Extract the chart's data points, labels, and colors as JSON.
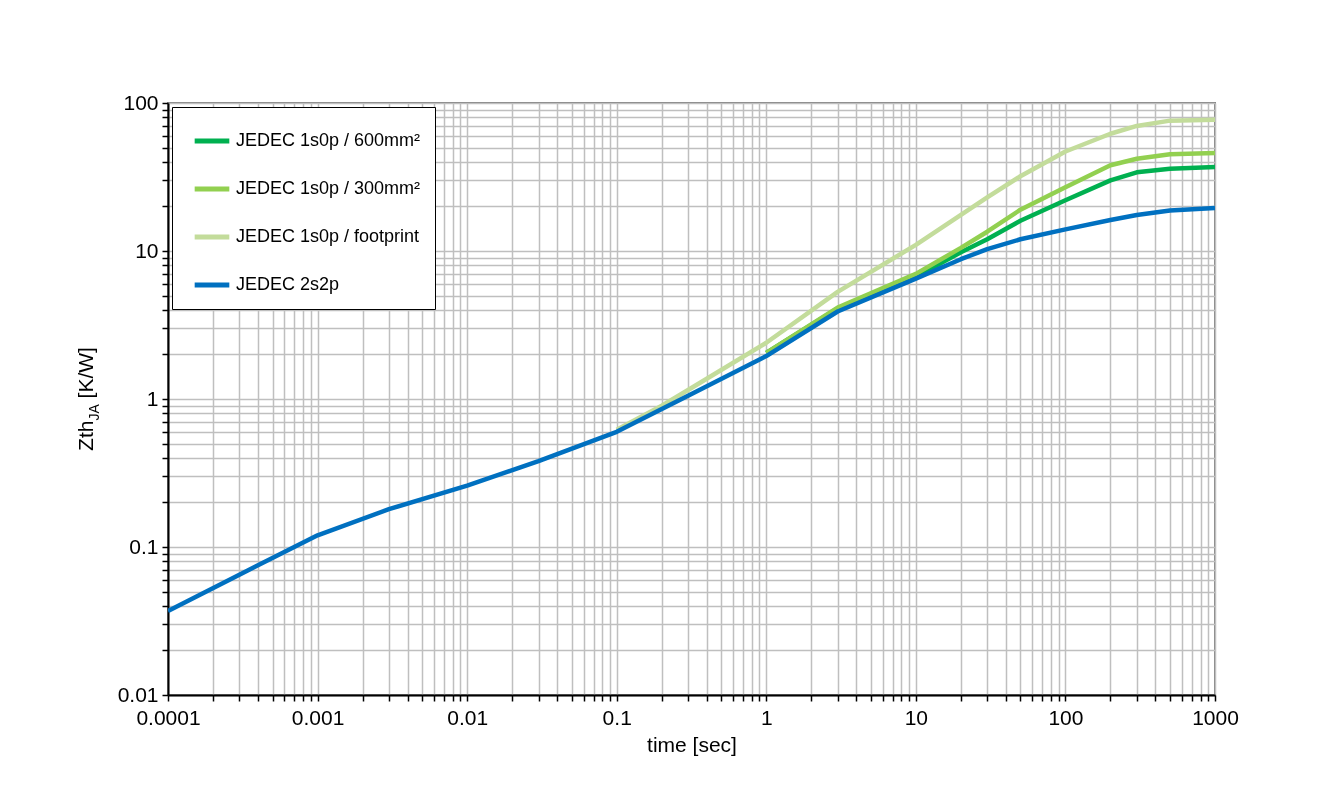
{
  "chart_data": {
    "type": "line",
    "xlabel": "time [sec]",
    "ylabel": "Zth$_{JA}$ [K/W]",
    "log": "xy",
    "grid": true,
    "legend": "top left",
    "line_style": "solid",
    "marker": "none",
    "xlim": [
      0.0001,
      1000
    ],
    "xticks": [
      0.0001,
      0.001,
      0.01,
      0.1,
      1,
      10,
      100,
      1000
    ],
    "ylim": [
      0.01,
      100
    ],
    "yticks": [
      0.01,
      0.1,
      1,
      10,
      100
    ],
    "series": [
      {
        "name": "JEDEC 1s0p / 600mm²",
        "color": "#00b050",
        "x": [
          1,
          3,
          10,
          20,
          30,
          50,
          100,
          200,
          300,
          500,
          1000
        ],
        "values": [
          2.05,
          4.1,
          6.7,
          9.8,
          12,
          16,
          22,
          30,
          34,
          36,
          37
        ]
      },
      {
        "name": "JEDEC 1s0p / 300mm²",
        "color": "#92d050",
        "x": [
          1,
          3,
          10,
          20,
          30,
          50,
          100,
          200,
          300,
          500,
          1000
        ],
        "values": [
          2.05,
          4.15,
          7,
          10.5,
          13.5,
          19,
          27,
          38,
          42,
          45,
          46
        ]
      },
      {
        "name": "JEDEC 1s0p / footprint",
        "color": "#c3dc9b",
        "x": [
          0.1,
          0.2,
          0.3,
          1,
          3,
          10,
          30,
          50,
          100,
          200,
          300,
          500,
          1000
        ],
        "values": [
          0.62,
          0.9,
          1.15,
          2.4,
          5.3,
          11,
          23,
          32,
          47,
          62,
          70,
          76,
          77
        ]
      },
      {
        "name": "JEDEC 2s2p",
        "color": "#0070c0",
        "x": [
          0.0001,
          0.0003,
          0.001,
          0.003,
          0.01,
          0.03,
          0.1,
          0.3,
          1,
          3,
          10,
          20,
          30,
          50,
          100,
          200,
          300,
          500,
          1000
        ],
        "values": [
          0.037,
          0.065,
          0.12,
          0.18,
          0.26,
          0.38,
          0.6,
          1.05,
          1.95,
          3.9,
          6.5,
          8.8,
          10.3,
          12,
          14,
          16.2,
          17.5,
          18.8,
          19.5
        ]
      }
    ]
  }
}
